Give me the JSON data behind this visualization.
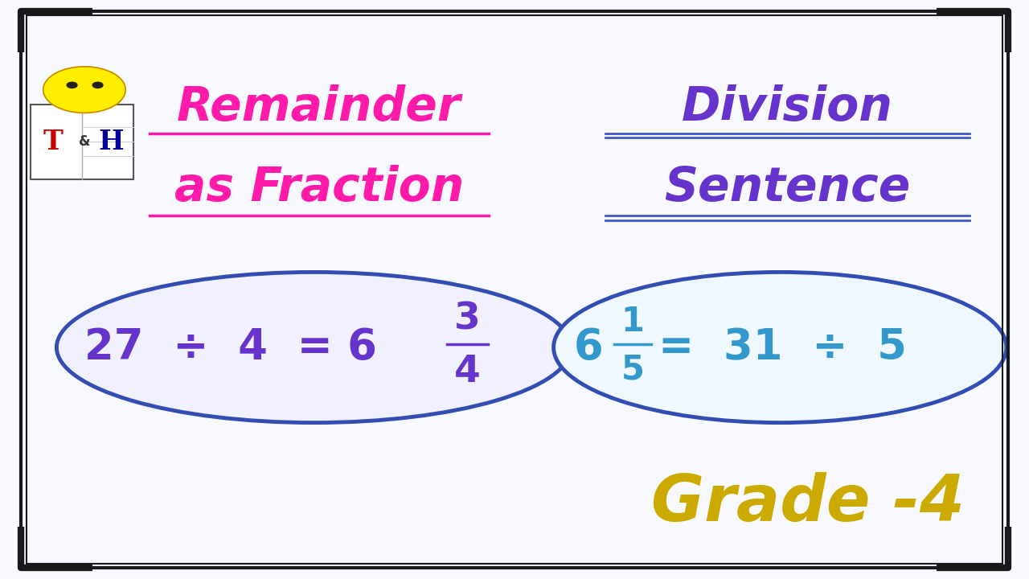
{
  "bg_color": "#f8f8ff",
  "border_color": "#1a1a1a",
  "title_left_line1": "Remainder",
  "title_left_line2": "as Fraction",
  "title_right_line1": "Division",
  "title_right_line2": "Sentence",
  "title_left_color": "#ff1aaa",
  "title_right_color": "#6633cc",
  "ellipse_edge_color": "#334db3",
  "ellipse1_face_color": "#f0f0ff",
  "ellipse2_face_color": "#f0f8ff",
  "eq1_color": "#6633cc",
  "eq2_color": "#3399cc",
  "grade_text": "Grade -4",
  "grade_color": "#ccaa00",
  "corner_color": "#1a1a1a",
  "underline_left_color": "#ff1aaa",
  "underline_right_color": "#4455cc"
}
